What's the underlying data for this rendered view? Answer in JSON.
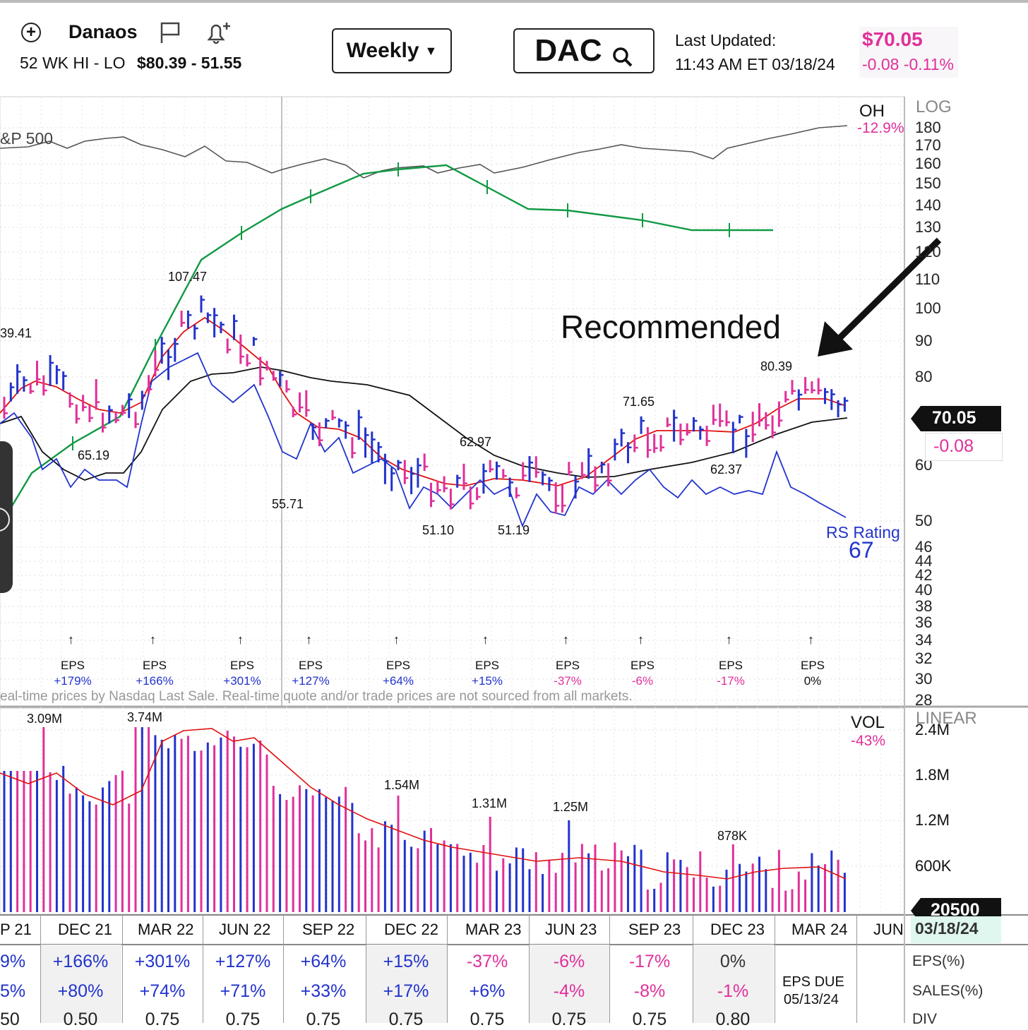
{
  "header": {
    "company": "Danaos",
    "range_label": "52 WK HI - LO",
    "range_value": "$80.39 - 51.55",
    "period": "Weekly",
    "ticker": "DAC",
    "updated_label": "Last Updated:",
    "updated_time": "11:43 AM ET 03/18/24",
    "price": "$70.05",
    "change": "-0.08 -0.11%"
  },
  "price_panel": {
    "scale": "LOG",
    "oh_label": "OH",
    "oh_value": "-12.9%",
    "benchmark": "&P 500",
    "annotation": "Recommended",
    "price_tag": "70.05",
    "change_tag": "-0.08",
    "rs_label": "RS Rating",
    "rs_value": "67",
    "y_ticks": [
      "180",
      "170",
      "160",
      "150",
      "140",
      "130",
      "120",
      "110",
      "100",
      "90",
      "80",
      "60",
      "50",
      "46",
      "44",
      "42",
      "40",
      "38",
      "36",
      "34",
      "32",
      "30",
      "28"
    ],
    "price_labels": [
      "39.41",
      "107.47",
      "65.19",
      "55.71",
      "62.97",
      "51.10",
      "51.19",
      "71.65",
      "62.37",
      "80.39"
    ],
    "disclaimer": "eal-time prices by Nasdaq Last Sale. Real-time quote and/or trade prices are not sourced from all markets.",
    "eps_markers": [
      {
        "label": "EPS",
        "value": "+179%",
        "color": "#2233cc"
      },
      {
        "label": "EPS",
        "value": "+166%",
        "color": "#2233cc"
      },
      {
        "label": "EPS",
        "value": "+301%",
        "color": "#2233cc"
      },
      {
        "label": "EPS",
        "value": "+127%",
        "color": "#2233cc"
      },
      {
        "label": "EPS",
        "value": "+64%",
        "color": "#2233cc"
      },
      {
        "label": "EPS",
        "value": "+15%",
        "color": "#2233cc"
      },
      {
        "label": "EPS",
        "value": "-37%",
        "color": "#e0309a"
      },
      {
        "label": "EPS",
        "value": "-6%",
        "color": "#e0309a"
      },
      {
        "label": "EPS",
        "value": "-17%",
        "color": "#e0309a"
      },
      {
        "label": "EPS",
        "value": "0%",
        "color": "#111111"
      }
    ]
  },
  "volume_panel": {
    "scale": "LINEAR",
    "vol_label": "VOL",
    "vol_value": "-43%",
    "y_ticks": [
      "2.4M",
      "1.8M",
      "1.2M",
      "600K"
    ],
    "peak_labels": [
      "3.09M",
      "3.74M",
      "1.54M",
      "1.31M",
      "1.25M",
      "878K"
    ],
    "vol_tag": "20500"
  },
  "x_axis": {
    "labels": [
      "P 21",
      "DEC 21",
      "MAR 22",
      "JUN 22",
      "SEP 22",
      "DEC 22",
      "MAR 23",
      "JUN 23",
      "SEP 23",
      "DEC 23",
      "MAR 24",
      "JUN"
    ],
    "current_date": "03/18/24"
  },
  "bottom_table": {
    "eps_row": [
      "9%",
      "+166%",
      "+301%",
      "+127%",
      "+64%",
      "+15%",
      "-37%",
      "-6%",
      "-17%",
      "0%"
    ],
    "sales_row": [
      "5%",
      "+80%",
      "+74%",
      "+71%",
      "+33%",
      "+17%",
      "+6%",
      "-4%",
      "-8%",
      "-1%"
    ],
    "div_row": [
      "50",
      "0.50",
      "0.75",
      "0.75",
      "0.75",
      "0.75",
      "0.75",
      "0.75",
      "0.75",
      "0.80"
    ],
    "eps_due_label": "EPS DUE",
    "eps_due_date": "05/13/24",
    "row_labels": [
      "EPS(%)",
      "SALES(%)",
      "DIV"
    ]
  },
  "colors": {
    "up": "#2233cc",
    "down": "#e0309a",
    "ma_fast": "#e01010",
    "ma_slow": "#111111",
    "rs_line": "#2233cc",
    "eps_line": "#119944"
  }
}
